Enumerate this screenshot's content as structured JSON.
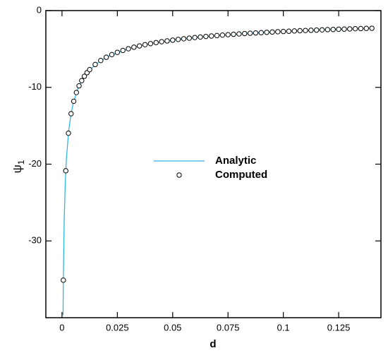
{
  "chart_data": {
    "type": "line",
    "x_label": "d",
    "y_label": "ψ",
    "y_label_subscript": "1",
    "xlim": [
      -0.0073,
      0.1441
    ],
    "ylim": [
      -40,
      0
    ],
    "xticks": [
      0,
      0.025,
      0.05,
      0.075,
      0.1,
      0.125
    ],
    "yticks": [
      0,
      -10,
      -20,
      -30
    ],
    "legend": "center",
    "series": [
      {
        "name": "Analytic",
        "color": "#33b5e5",
        "style": "line",
        "x": [
          0.00047,
          0.0006,
          0.001,
          0.0015,
          0.002,
          0.003,
          0.004,
          0.005,
          0.007,
          0.01,
          0.015,
          0.02,
          0.03,
          0.04,
          0.05,
          0.06,
          0.07,
          0.08,
          0.1,
          0.12,
          0.14
        ],
        "values": [
          -39.67,
          -35.11,
          -27.2,
          -22.21,
          -19.23,
          -15.7,
          -13.6,
          -12.16,
          -10.28,
          -8.6,
          -7.02,
          -6.08,
          -4.97,
          -4.3,
          -3.85,
          -3.51,
          -3.25,
          -3.04,
          -2.72,
          -2.48,
          -2.3
        ]
      },
      {
        "name": "Computed",
        "color": "#000000",
        "style": "markers",
        "x": [
          0.0006,
          0.0017,
          0.0029,
          0.0041,
          0.0053,
          0.0065,
          0.0077,
          0.0089,
          0.0101,
          0.0113,
          0.0125,
          0.015,
          0.0175,
          0.02,
          0.0225,
          0.025,
          0.0275,
          0.03,
          0.0325,
          0.035,
          0.0375,
          0.04,
          0.0425,
          0.045,
          0.0475,
          0.05,
          0.0525,
          0.055,
          0.0575,
          0.06,
          0.0625,
          0.065,
          0.0675,
          0.07,
          0.0725,
          0.075,
          0.0775,
          0.08,
          0.0825,
          0.085,
          0.0875,
          0.09,
          0.0925,
          0.095,
          0.0975,
          0.1,
          0.1025,
          0.105,
          0.1075,
          0.11,
          0.1125,
          0.115,
          0.1175,
          0.12,
          0.1225,
          0.125,
          0.1275,
          0.13,
          0.1325,
          0.135,
          0.1375,
          0.14
        ],
        "values": [
          -35.11,
          -20.86,
          -15.97,
          -13.43,
          -11.81,
          -10.67,
          -9.8,
          -9.12,
          -8.56,
          -8.09,
          -7.69,
          -7.02,
          -6.5,
          -6.08,
          -5.73,
          -5.44,
          -5.19,
          -4.97,
          -4.77,
          -4.6,
          -4.44,
          -4.3,
          -4.17,
          -4.05,
          -3.95,
          -3.85,
          -3.75,
          -3.67,
          -3.59,
          -3.51,
          -3.44,
          -3.37,
          -3.31,
          -3.25,
          -3.19,
          -3.14,
          -3.09,
          -3.04,
          -2.99,
          -2.95,
          -2.91,
          -2.87,
          -2.83,
          -2.79,
          -2.75,
          -2.72,
          -2.69,
          -2.65,
          -2.62,
          -2.59,
          -2.56,
          -2.54,
          -2.51,
          -2.48,
          -2.46,
          -2.43,
          -2.41,
          -2.39,
          -2.36,
          -2.34,
          -2.32,
          -2.3
        ]
      }
    ]
  }
}
